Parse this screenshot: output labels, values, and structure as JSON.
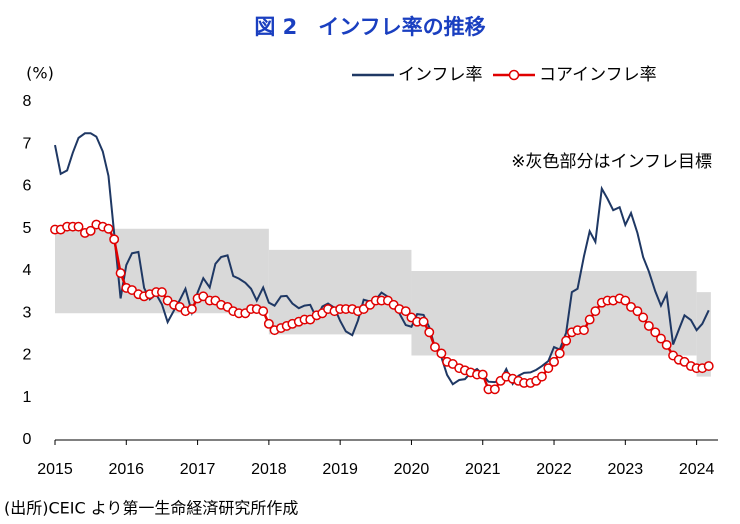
{
  "chart_data": {
    "type": "line",
    "title": "図 2　インフレ率の推移",
    "y_label": "(%)",
    "annotation": "※灰色部分はインフレ目標",
    "source": "(出所)CEIC より第一生命経済研究所作成",
    "xlim": [
      2015,
      2024.3
    ],
    "xticks": [
      2015,
      2016,
      2017,
      2018,
      2019,
      2020,
      2021,
      2022,
      2023,
      2024
    ],
    "ylim": [
      0,
      8
    ],
    "yticks": [
      0,
      1,
      2,
      3,
      4,
      5,
      6,
      7,
      8
    ],
    "target_band": {
      "color": "#d9d9d9",
      "edges": [
        2015,
        2018,
        2020,
        2024,
        2024.2
      ],
      "lower": [
        3,
        2.5,
        2,
        1.5
      ],
      "upper": [
        5,
        4.5,
        4,
        3.5
      ]
    },
    "x": [
      2015.0,
      2015.08,
      2015.17,
      2015.25,
      2015.33,
      2015.42,
      2015.5,
      2015.58,
      2015.67,
      2015.75,
      2015.83,
      2015.92,
      2016.0,
      2016.08,
      2016.17,
      2016.25,
      2016.33,
      2016.42,
      2016.5,
      2016.58,
      2016.67,
      2016.75,
      2016.83,
      2016.92,
      2017.0,
      2017.08,
      2017.17,
      2017.25,
      2017.33,
      2017.42,
      2017.5,
      2017.58,
      2017.67,
      2017.75,
      2017.83,
      2017.92,
      2018.0,
      2018.08,
      2018.17,
      2018.25,
      2018.33,
      2018.42,
      2018.5,
      2018.58,
      2018.67,
      2018.75,
      2018.83,
      2018.92,
      2019.0,
      2019.08,
      2019.17,
      2019.25,
      2019.33,
      2019.42,
      2019.5,
      2019.58,
      2019.67,
      2019.75,
      2019.83,
      2019.92,
      2020.0,
      2020.08,
      2020.17,
      2020.25,
      2020.33,
      2020.42,
      2020.5,
      2020.58,
      2020.67,
      2020.75,
      2020.83,
      2020.92,
      2021.0,
      2021.08,
      2021.17,
      2021.25,
      2021.33,
      2021.42,
      2021.5,
      2021.58,
      2021.67,
      2021.75,
      2021.83,
      2021.92,
      2022.0,
      2022.08,
      2022.17,
      2022.25,
      2022.33,
      2022.42,
      2022.5,
      2022.58,
      2022.67,
      2022.75,
      2022.83,
      2022.92,
      2023.0,
      2023.08,
      2023.17,
      2023.25,
      2023.33,
      2023.42,
      2023.5,
      2023.58,
      2023.67,
      2023.75,
      2023.83,
      2023.92,
      2024.0,
      2024.08,
      2024.17
    ],
    "series": [
      {
        "name": "インフレ率",
        "color": "#1f3864",
        "marker": false,
        "values": [
          6.98,
          6.3,
          6.38,
          6.8,
          7.15,
          7.26,
          7.26,
          7.18,
          6.83,
          6.25,
          4.89,
          3.35,
          4.14,
          4.42,
          4.45,
          3.6,
          3.33,
          3.45,
          3.21,
          2.79,
          3.07,
          3.31,
          3.58,
          3.02,
          3.49,
          3.83,
          3.61,
          4.17,
          4.33,
          4.37,
          3.88,
          3.82,
          3.72,
          3.58,
          3.3,
          3.61,
          3.25,
          3.18,
          3.4,
          3.41,
          3.23,
          3.12,
          3.18,
          3.2,
          2.88,
          3.16,
          3.23,
          3.13,
          2.82,
          2.57,
          2.48,
          2.83,
          3.32,
          3.28,
          3.32,
          3.49,
          3.39,
          3.13,
          3.0,
          2.72,
          2.68,
          2.98,
          2.96,
          2.67,
          2.19,
          1.96,
          1.54,
          1.32,
          1.42,
          1.44,
          1.59,
          1.68,
          1.55,
          1.38,
          1.37,
          1.42,
          1.68,
          1.33,
          1.52,
          1.59,
          1.6,
          1.66,
          1.75,
          1.87,
          2.2,
          2.14,
          2.54,
          3.5,
          3.58,
          4.35,
          4.94,
          4.69,
          5.95,
          5.71,
          5.44,
          5.51,
          5.09,
          5.37,
          4.9,
          4.33,
          3.99,
          3.52,
          3.18,
          3.46,
          2.26,
          2.61,
          2.95,
          2.84,
          2.6,
          2.75,
          3.07
        ]
      },
      {
        "name": "コアインフレ率",
        "color": "#e00000",
        "marker": true,
        "values": [
          4.98,
          4.98,
          5.05,
          5.05,
          5.05,
          4.9,
          4.95,
          5.1,
          5.05,
          5.0,
          4.75,
          3.95,
          3.6,
          3.55,
          3.45,
          3.4,
          3.45,
          3.5,
          3.5,
          3.3,
          3.2,
          3.15,
          3.05,
          3.1,
          3.35,
          3.4,
          3.3,
          3.3,
          3.2,
          3.15,
          3.05,
          3.0,
          3.0,
          3.1,
          3.1,
          3.05,
          2.75,
          2.6,
          2.65,
          2.7,
          2.75,
          2.8,
          2.85,
          2.85,
          2.95,
          3.0,
          3.1,
          3.05,
          3.1,
          3.1,
          3.1,
          3.05,
          3.1,
          3.2,
          3.3,
          3.3,
          3.3,
          3.2,
          3.1,
          3.05,
          2.9,
          2.8,
          2.8,
          2.55,
          2.2,
          2.05,
          1.85,
          1.8,
          1.7,
          1.65,
          1.6,
          1.55,
          1.55,
          1.2,
          1.2,
          1.4,
          1.5,
          1.45,
          1.4,
          1.35,
          1.35,
          1.4,
          1.5,
          1.7,
          1.85,
          2.05,
          2.35,
          2.55,
          2.6,
          2.6,
          2.85,
          3.05,
          3.25,
          3.3,
          3.3,
          3.35,
          3.3,
          3.15,
          3.05,
          2.9,
          2.7,
          2.55,
          2.4,
          2.25,
          2.0,
          1.9,
          1.85,
          1.75,
          1.7,
          1.7,
          1.75
        ]
      }
    ]
  }
}
